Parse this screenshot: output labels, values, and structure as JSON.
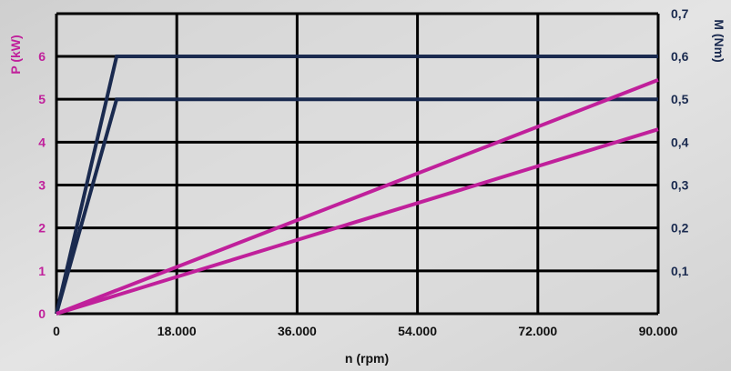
{
  "chart_data": {
    "type": "line",
    "xlabel": "n (rpm)",
    "ylabel_left": "P (kW)",
    "ylabel_right": "M (Nm)",
    "xlim": [
      0,
      90000
    ],
    "ylim_left": [
      0,
      6
    ],
    "ylim_right": [
      0,
      0.6
    ],
    "x_ticks": [
      {
        "value": 0,
        "label": "0"
      },
      {
        "value": 18000,
        "label": "18.000"
      },
      {
        "value": 36000,
        "label": "36.000"
      },
      {
        "value": 54000,
        "label": "54.000"
      },
      {
        "value": 72000,
        "label": "72.000"
      },
      {
        "value": 90000,
        "label": "90.000"
      }
    ],
    "left_ticks": [
      {
        "value": 0,
        "label": "0"
      },
      {
        "value": 1,
        "label": "1"
      },
      {
        "value": 2,
        "label": "2"
      },
      {
        "value": 3,
        "label": "3"
      },
      {
        "value": 4,
        "label": "4"
      },
      {
        "value": 5,
        "label": "5"
      },
      {
        "value": 6,
        "label": "6"
      }
    ],
    "right_ticks": [
      {
        "value": 0.1,
        "label": "0,1"
      },
      {
        "value": 0.2,
        "label": "0,2"
      },
      {
        "value": 0.3,
        "label": "0,3"
      },
      {
        "value": 0.4,
        "label": "0,4"
      },
      {
        "value": 0.5,
        "label": "0,5"
      },
      {
        "value": 0.6,
        "label": "0,6"
      },
      {
        "value": 0.7,
        "label": "0,7"
      }
    ],
    "grid": true,
    "series": [
      {
        "axis": "right",
        "color": "#1a2a4f",
        "x": [
          0,
          9000,
          90000
        ],
        "y": [
          0,
          0.6,
          0.6
        ]
      },
      {
        "axis": "right",
        "color": "#1a2a4f",
        "x": [
          0,
          9000,
          90000
        ],
        "y": [
          0,
          0.5,
          0.5
        ]
      },
      {
        "axis": "left",
        "color": "#c0209b",
        "x": [
          0,
          90000
        ],
        "y": [
          0,
          5.45
        ]
      },
      {
        "axis": "left",
        "color": "#c0209b",
        "x": [
          0,
          90000
        ],
        "y": [
          0,
          4.3
        ]
      }
    ]
  },
  "colors": {
    "power": "#c0209b",
    "torque": "#1a2a4f",
    "grid": "#000000"
  }
}
